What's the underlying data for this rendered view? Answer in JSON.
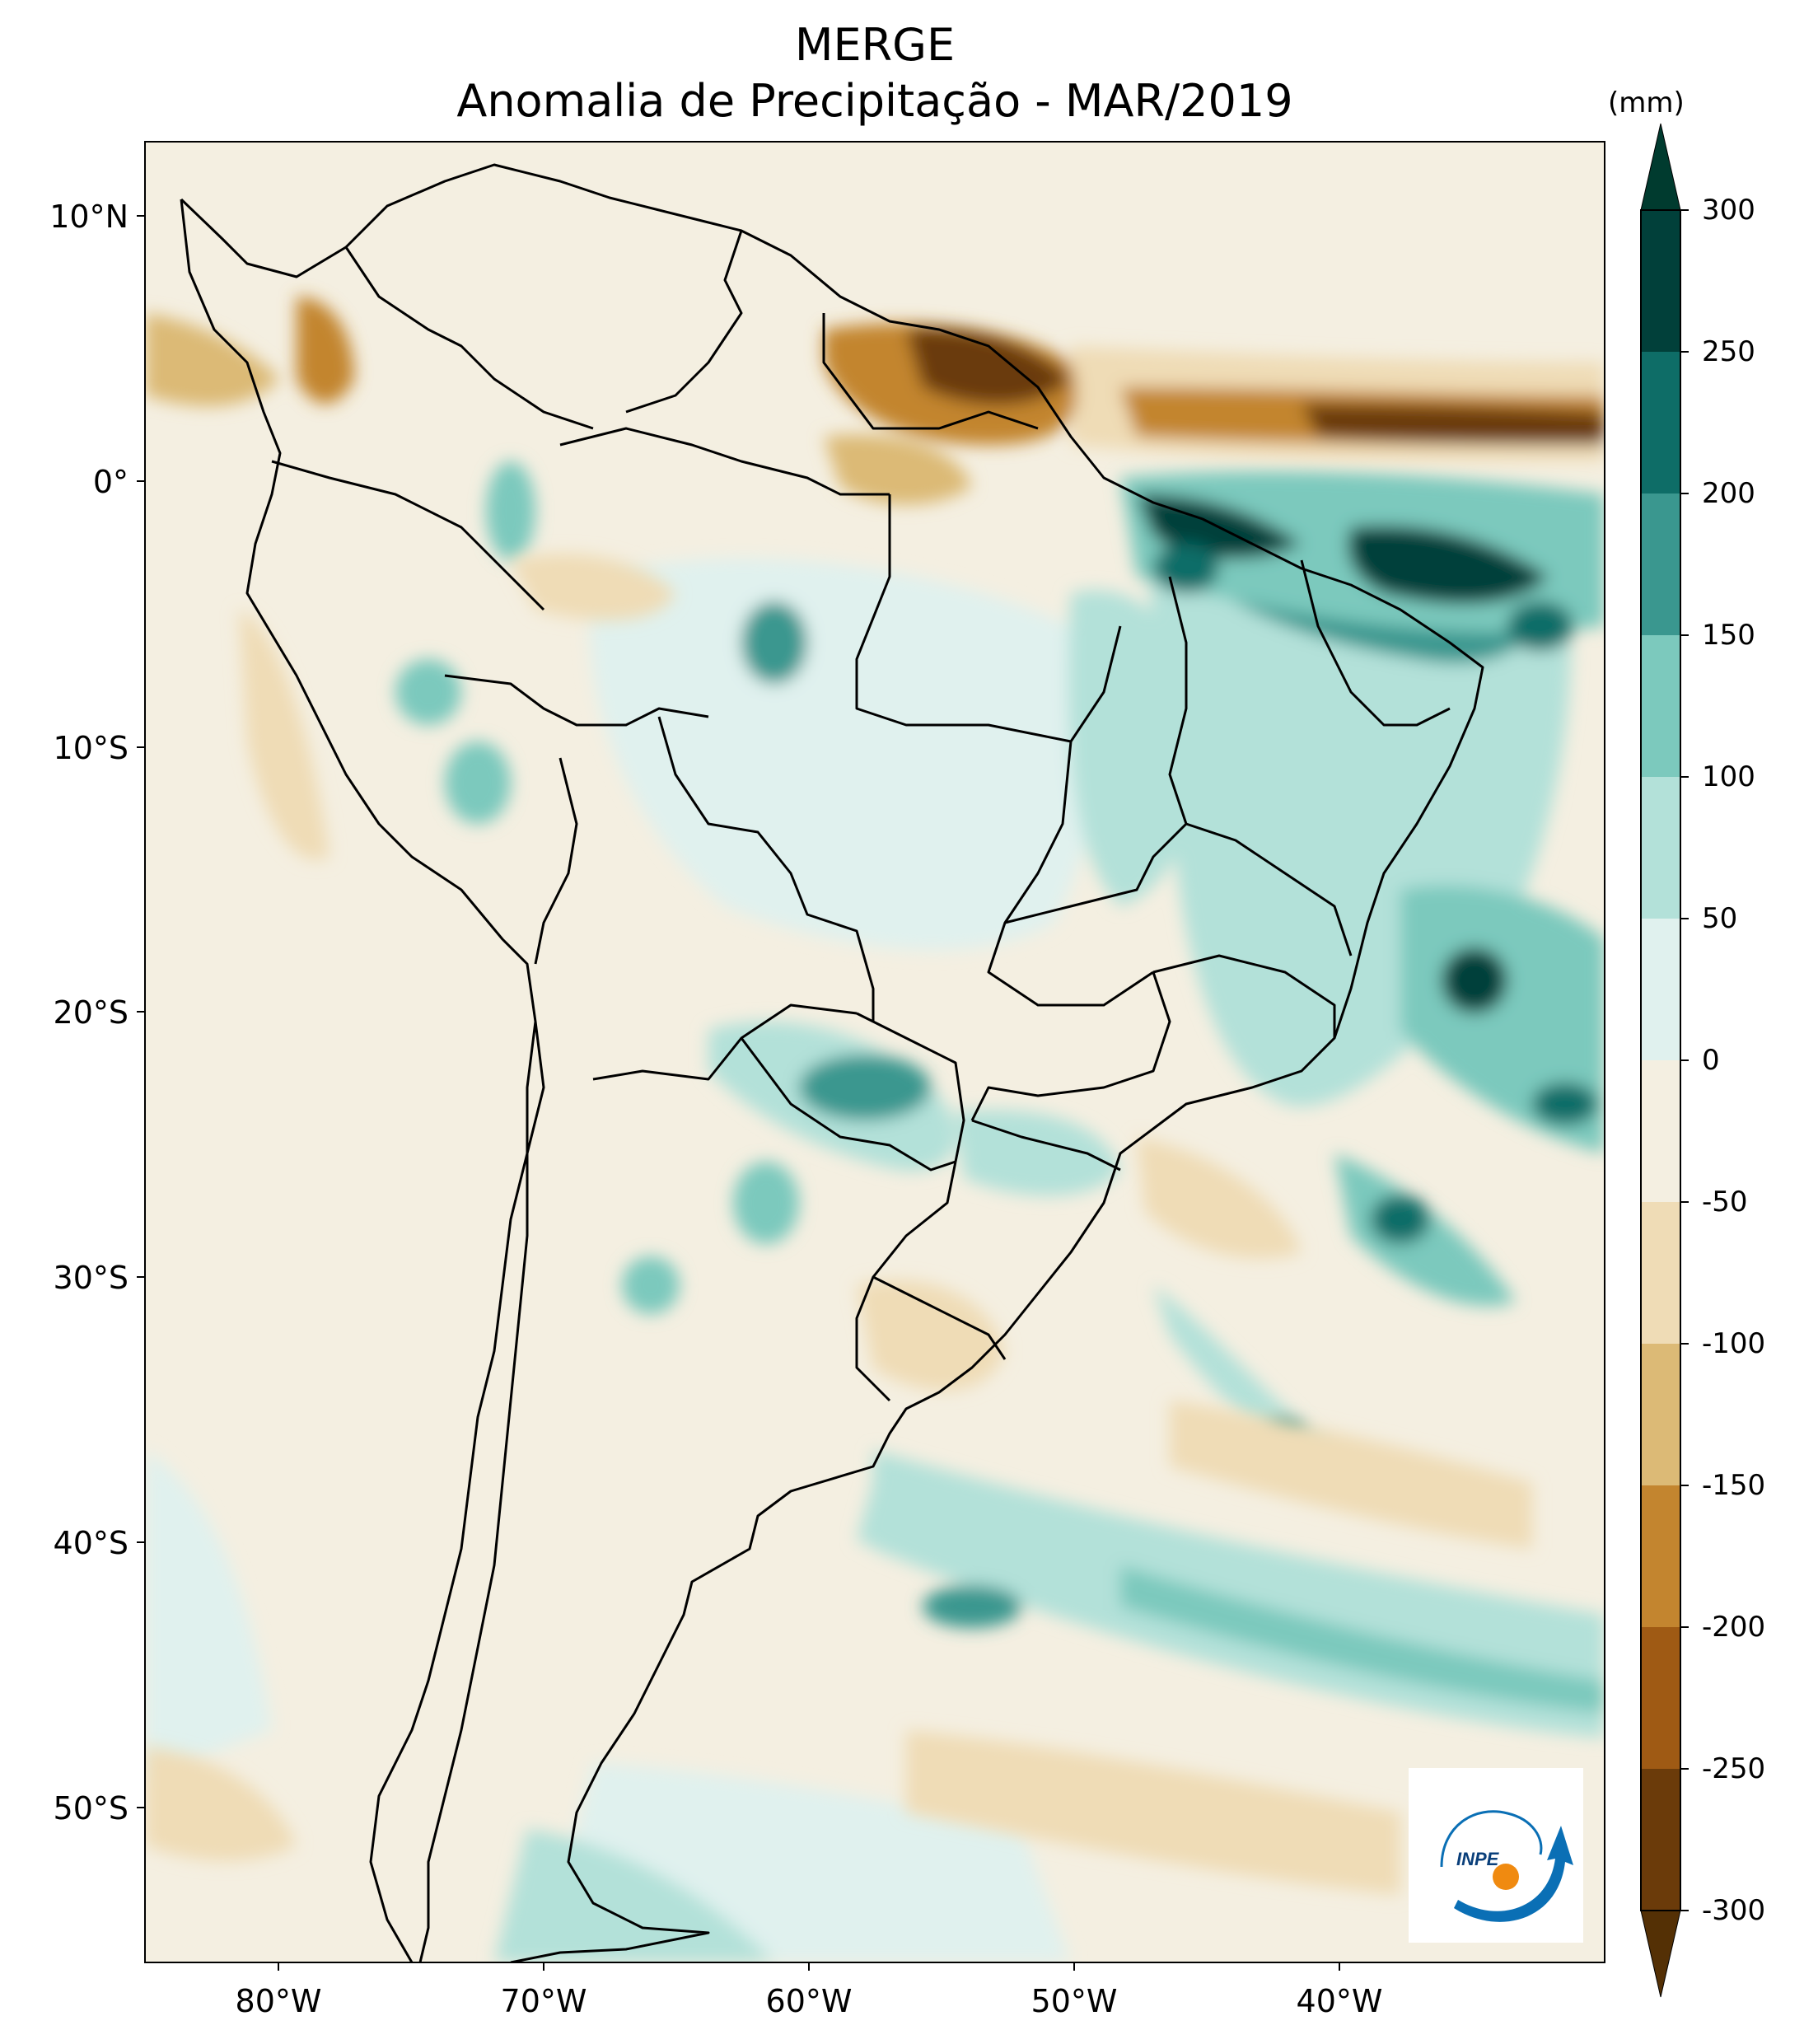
{
  "title": {
    "line1": "MERGE",
    "line2": "Anomalia de Precipitação - MAR/2019"
  },
  "axes": {
    "lat_labels": [
      "10°N",
      "0°",
      "10°S",
      "20°S",
      "30°S",
      "40°S",
      "50°S"
    ],
    "lon_labels": [
      "80°W",
      "70°W",
      "60°W",
      "50°W",
      "40°W"
    ]
  },
  "colorbar": {
    "unit": "(mm)",
    "ticks": [
      "300",
      "250",
      "200",
      "150",
      "100",
      "50",
      "0",
      "-50",
      "-100",
      "-150",
      "-200",
      "-250",
      "-300"
    ],
    "colors_top_to_bottom": [
      "#01403a",
      "#0e6d67",
      "#3a978f",
      "#7cc9bd",
      "#b3e1d9",
      "#e0f1ee",
      "#f4efe1",
      "#efdcb6",
      "#dcba76",
      "#c3852f",
      "#9f5a14",
      "#6b3b0a"
    ],
    "extend_top": "#003b2f",
    "extend_bottom": "#543005"
  },
  "colors": {
    "ocean_base": "#f4efe1",
    "land_base": "#f4efe1",
    "border": "#000000"
  },
  "logo": {
    "text": "INPE",
    "blue": "#0a6fb5",
    "orange": "#f08a10"
  }
}
